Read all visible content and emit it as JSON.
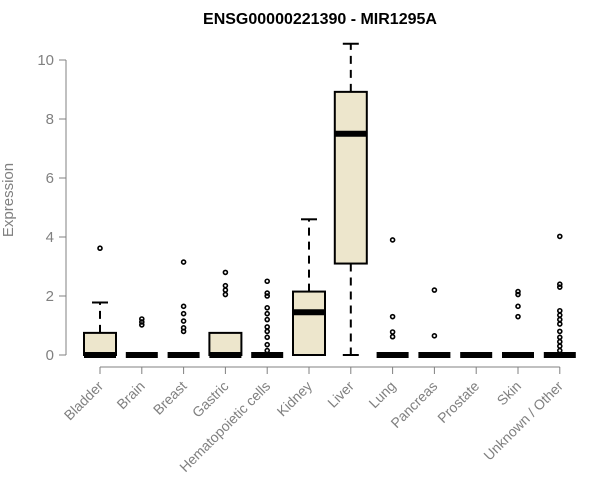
{
  "chart_data": {
    "type": "box",
    "title": "ENSG00000221390 - MIR1295A",
    "xlabel": "",
    "ylabel": "Expression",
    "ylim": [
      0,
      10.5
    ],
    "yticks": [
      0,
      2,
      4,
      6,
      8,
      10
    ],
    "categories": [
      "Bladder",
      "Brain",
      "Breast",
      "Gastric",
      "Hematopoietic cells",
      "Kidney",
      "Liver",
      "Lung",
      "Pancreas",
      "Prostate",
      "Skin",
      "Unknown / Other"
    ],
    "box_color": "#ede6cc",
    "boxes": [
      {
        "q1": 0,
        "median": 0,
        "q3": 0.75,
        "whisker_low": 0,
        "whisker_high": 1.78,
        "outliers": [
          3.62
        ]
      },
      {
        "q1": 0,
        "median": 0,
        "q3": 0,
        "whisker_low": 0,
        "whisker_high": 0,
        "outliers": [
          1.22,
          1.12,
          1.02
        ]
      },
      {
        "q1": 0,
        "median": 0,
        "q3": 0,
        "whisker_low": 0,
        "whisker_high": 0,
        "outliers": [
          3.15,
          1.65,
          1.4,
          1.15,
          0.92,
          0.8
        ]
      },
      {
        "q1": 0,
        "median": 0,
        "q3": 0.75,
        "whisker_low": 0,
        "whisker_high": 0.75,
        "outliers": [
          2.8,
          2.35,
          2.2,
          2.05
        ]
      },
      {
        "q1": 0,
        "median": 0,
        "q3": 0,
        "whisker_low": 0,
        "whisker_high": 0,
        "outliers": [
          2.5,
          2.1,
          2.0,
          1.6,
          1.4,
          1.2,
          0.95,
          0.8,
          0.6,
          0.35,
          0.15
        ]
      },
      {
        "q1": 0,
        "median": 1.45,
        "q3": 2.15,
        "whisker_low": 0,
        "whisker_high": 4.6,
        "outliers": []
      },
      {
        "q1": 3.1,
        "median": 7.5,
        "q3": 8.92,
        "whisker_low": 0,
        "whisker_high": 10.55,
        "outliers": []
      },
      {
        "q1": 0,
        "median": 0,
        "q3": 0,
        "whisker_low": 0,
        "whisker_high": 0,
        "outliers": [
          3.9,
          1.3,
          0.78,
          0.62
        ]
      },
      {
        "q1": 0,
        "median": 0,
        "q3": 0,
        "whisker_low": 0,
        "whisker_high": 0,
        "outliers": [
          2.2,
          0.65
        ]
      },
      {
        "q1": 0,
        "median": 0,
        "q3": 0,
        "whisker_low": 0,
        "whisker_high": 0,
        "outliers": []
      },
      {
        "q1": 0,
        "median": 0,
        "q3": 0,
        "whisker_low": 0,
        "whisker_high": 0,
        "outliers": [
          2.15,
          2.05,
          1.65,
          1.3
        ]
      },
      {
        "q1": 0,
        "median": 0,
        "q3": 0,
        "whisker_low": 0,
        "whisker_high": 0,
        "outliers": [
          4.02,
          2.4,
          2.3,
          1.5,
          1.35,
          1.2,
          1.05,
          0.8,
          0.6,
          0.45,
          0.3,
          0.15
        ]
      }
    ]
  }
}
